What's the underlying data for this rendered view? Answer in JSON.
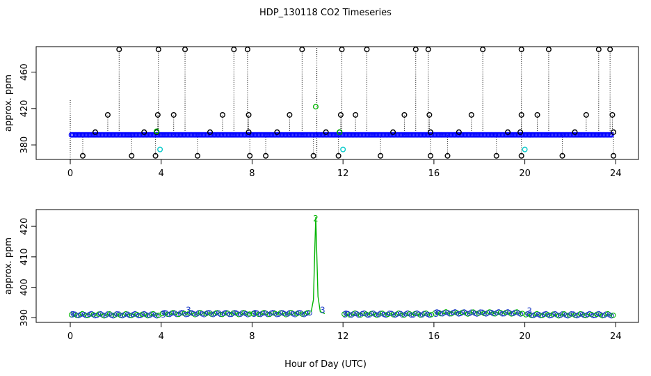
{
  "title": "HDP_130118  CO2 Timeseries",
  "xlabel": "Hour of Day (UTC)",
  "colors": {
    "point_default": "#0000ff",
    "point_outlier": "#000000",
    "point_cyan": "#00c8c8",
    "point_green": "#00b400",
    "flag_line": "#000000",
    "bottom_line": "#00b400",
    "bottom_label_blue": "#1e3cc8"
  },
  "chart_data": [
    {
      "type": "scatter",
      "ylabel": "approx. ppm",
      "xlim": [
        -1.5,
        25
      ],
      "ylim": [
        364,
        488
      ],
      "x_ticks": [
        "0",
        "4",
        "8",
        "12",
        "16",
        "20",
        "24"
      ],
      "y_ticks": [
        "380",
        "420",
        "460"
      ],
      "baseline_series": {
        "x_start": 0.05,
        "x_end": 23.85,
        "x_step": 0.06,
        "y": 391
      },
      "flagged_high": {
        "y": 485,
        "x": [
          2.15,
          3.88,
          5.05,
          7.2,
          7.8,
          10.2,
          11.95,
          13.05,
          15.2,
          15.75,
          18.15,
          19.85,
          21.05,
          23.25,
          23.75
        ]
      },
      "flagged_mid": {
        "y": 413,
        "x": [
          1.65,
          3.85,
          4.55,
          6.7,
          7.85,
          9.65,
          11.9,
          12.55,
          14.7,
          15.8,
          17.65,
          19.85,
          20.55,
          22.7,
          23.85
        ]
      },
      "flagged_low": {
        "y": 368,
        "x": [
          0.55,
          2.7,
          3.75,
          5.6,
          7.9,
          8.6,
          10.7,
          11.8,
          13.65,
          15.85,
          16.6,
          18.75,
          19.85,
          21.65,
          23.9
        ]
      },
      "flagged_small": {
        "y": 394,
        "x": [
          1.1,
          3.25,
          3.8,
          6.15,
          7.85,
          9.1,
          11.25,
          11.85,
          14.2,
          15.85,
          17.1,
          19.25,
          19.8,
          22.2,
          23.9
        ]
      },
      "cyan_points": [
        {
          "x": 3.95,
          "y": 375
        },
        {
          "x": 12.0,
          "y": 375
        },
        {
          "x": 20.0,
          "y": 375
        }
      ],
      "green_points": [
        {
          "x": 10.8,
          "y": 422
        },
        {
          "x": 3.8,
          "y": 395
        },
        {
          "x": 11.85,
          "y": 394
        }
      ]
    },
    {
      "type": "line",
      "ylabel": "approx. ppm",
      "xlim": [
        -1.5,
        25
      ],
      "ylim": [
        388.5,
        425.5
      ],
      "x_ticks": [
        "0",
        "4",
        "8",
        "12",
        "16",
        "20",
        "24"
      ],
      "y_ticks": [
        "390",
        "400",
        "410",
        "420"
      ],
      "segments": [
        {
          "x_start": 0.05,
          "x_end": 3.95,
          "y": 391
        },
        {
          "x_start": 4.05,
          "x_end": 7.95,
          "y": 391.4
        },
        {
          "x_start": 8.05,
          "x_end": 10.6,
          "y": 391.4
        },
        {
          "x_start": 12.05,
          "x_end": 15.9,
          "y": 391.2
        },
        {
          "x_start": 16.05,
          "x_end": 19.9,
          "y": 391.6
        },
        {
          "x_start": 20.05,
          "x_end": 23.9,
          "y": 391
        }
      ],
      "spike": {
        "x": [
          10.6,
          10.7,
          10.75,
          10.8,
          10.85,
          10.9,
          11.0,
          11.2
        ],
        "y": [
          392,
          396,
          410,
          423,
          410,
          397,
          392,
          391.4
        ]
      },
      "point_labels": [
        {
          "x": 10.8,
          "y": 422.5,
          "text": "2"
        },
        {
          "x": 5.2,
          "y": 392.5,
          "text": "3"
        },
        {
          "x": 11.1,
          "y": 392.5,
          "text": "3"
        },
        {
          "x": 20.2,
          "y": 392.3,
          "text": "3"
        },
        {
          "x": 0.1,
          "y": 391,
          "text": "3"
        },
        {
          "x": 4.1,
          "y": 391,
          "text": "3"
        },
        {
          "x": 8.1,
          "y": 391.2,
          "text": "3"
        },
        {
          "x": 12.1,
          "y": 391,
          "text": "3"
        },
        {
          "x": 16.1,
          "y": 391.2,
          "text": "3"
        }
      ]
    }
  ]
}
